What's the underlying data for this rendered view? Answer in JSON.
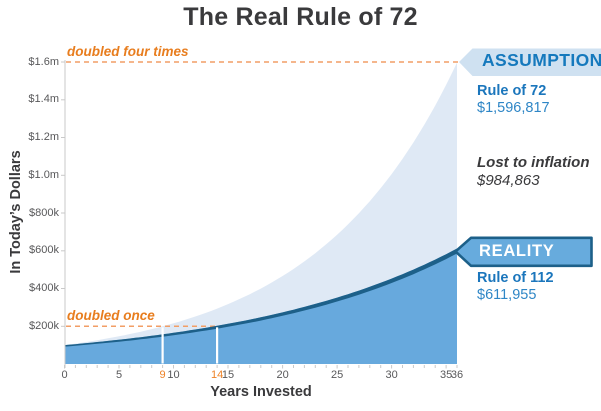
{
  "title": "The Real Rule of 72",
  "chart_data": {
    "type": "area",
    "title": "The Real Rule of 72",
    "xlabel": "Years Invested",
    "ylabel": "In Today’s Dollars",
    "x_range": [
      0,
      36
    ],
    "y_range": [
      0,
      1600000
    ],
    "grid": false,
    "legend_position": "right-callouts",
    "y_ticks": [
      {
        "label": "$1.6m",
        "value": 1600000
      },
      {
        "label": "$1.4m",
        "value": 1400000
      },
      {
        "label": "$1.2m",
        "value": 1200000
      },
      {
        "label": "$1.0m",
        "value": 1000000
      },
      {
        "label": "$800k",
        "value": 800000
      },
      {
        "label": "$600k",
        "value": 600000
      },
      {
        "label": "$400k",
        "value": 400000
      },
      {
        "label": "$200k",
        "value": 200000
      }
    ],
    "x_ticks": [
      {
        "label": "0",
        "value": 0,
        "highlight": false
      },
      {
        "label": "5",
        "value": 5,
        "highlight": false
      },
      {
        "label": "9",
        "value": 9,
        "highlight": true
      },
      {
        "label": "10",
        "value": 10,
        "highlight": false
      },
      {
        "label": "14",
        "value": 14,
        "highlight": true
      },
      {
        "label": "15",
        "value": 15,
        "highlight": false
      },
      {
        "label": "20",
        "value": 20,
        "highlight": false
      },
      {
        "label": "25",
        "value": 25,
        "highlight": false
      },
      {
        "label": "30",
        "value": 30,
        "highlight": false
      },
      {
        "label": "35",
        "value": 35,
        "highlight": false
      },
      {
        "label": "36",
        "value": 36,
        "highlight": false
      }
    ],
    "series": [
      {
        "name": "Assumption (Rule of 72)",
        "curve": "exponential",
        "start_value": 100000,
        "end_value": 1596817,
        "doubles_every_years": 9
      },
      {
        "name": "Reality (Rule of 112)",
        "curve": "exponential",
        "start_value": 100000,
        "end_value": 611955,
        "doubles_every_years": 14
      }
    ],
    "annotations": [
      {
        "text": "doubled four times",
        "at_value": 1600000
      },
      {
        "text": "doubled once",
        "at_value": 200000
      }
    ],
    "marker_years": [
      9,
      14
    ],
    "marker_level": 200000
  },
  "callouts": {
    "assumption": {
      "banner": "ASSUMPTION",
      "rule": "Rule of 72",
      "amount": "$1,596,817"
    },
    "inflation": {
      "label": "Lost to inflation",
      "amount": "$984,863"
    },
    "reality": {
      "banner": "REALITY",
      "rule": "Rule of 112",
      "amount": "$611,955"
    }
  },
  "colors": {
    "assumption_area": "#dfe9f5",
    "reality_area": "#67a9dd",
    "reality_line": "#1d6089",
    "dash_orange": "#f29e66",
    "orange_text": "#e87d1e",
    "orange_tick": "#ed8227",
    "assumption_banner": "#cfe1f1",
    "assumption_banner_text": "#1579bd",
    "reality_banner": "#67abdd",
    "blue_text": "#1b76bc",
    "blue_amount_text": "#2e86c6",
    "dark_text": "#3a3a3c",
    "axis_gray": "#c9c9c9",
    "tick_text": "#58585a"
  }
}
